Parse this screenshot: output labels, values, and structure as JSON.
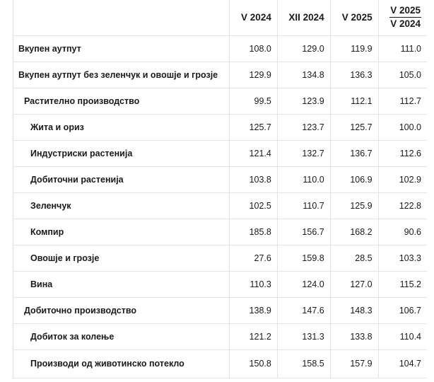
{
  "table": {
    "headers": {
      "label": "",
      "col1": "V 2024",
      "col2": "XII 2024",
      "col3": "V 2025",
      "col4_top": "V 2025",
      "col4_bottom": "V 2024"
    },
    "rows": [
      {
        "label": "Вкупен аутпут",
        "v1": "108.0",
        "v2": "129.0",
        "v3": "119.9",
        "v4": "111.0"
      },
      {
        "label": "Вкупен аутпут без зеленчук и овошје и грозје",
        "v1": "129.9",
        "v2": "134.8",
        "v3": "136.3",
        "v4": "105.0"
      },
      {
        "label": "Растително производство",
        "v1": "99.5",
        "v2": "123.9",
        "v3": "112.1",
        "v4": "112.7"
      },
      {
        "label": "Жита и ориз",
        "v1": "125.7",
        "v2": "123.7",
        "v3": "125.7",
        "v4": "100.0"
      },
      {
        "label": "Индустриски растенија",
        "v1": "121.4",
        "v2": "132.7",
        "v3": "136.7",
        "v4": "112.6"
      },
      {
        "label": "Добиточни растенија",
        "v1": "103.8",
        "v2": "110.0",
        "v3": "106.9",
        "v4": "102.9"
      },
      {
        "label": "Зеленчук",
        "v1": "102.5",
        "v2": "110.7",
        "v3": "125.9",
        "v4": "122.8"
      },
      {
        "label": "Компир",
        "v1": "185.8",
        "v2": "156.7",
        "v3": "168.2",
        "v4": "90.6"
      },
      {
        "label": "Овошје и грозје",
        "v1": "27.6",
        "v2": "159.8",
        "v3": "28.5",
        "v4": "103.3"
      },
      {
        "label": "Вина",
        "v1": "110.3",
        "v2": "124.0",
        "v3": "127.0",
        "v4": "115.2"
      },
      {
        "label": "Добиточно производство",
        "v1": "138.9",
        "v2": "147.6",
        "v3": "148.3",
        "v4": "106.7"
      },
      {
        "label": "Добиток за колење",
        "v1": "121.2",
        "v2": "131.3",
        "v3": "133.8",
        "v4": "110.4"
      },
      {
        "label": "Производи од животинско потекло",
        "v1": "150.8",
        "v2": "158.5",
        "v3": "157.9",
        "v4": "104.7"
      }
    ]
  }
}
